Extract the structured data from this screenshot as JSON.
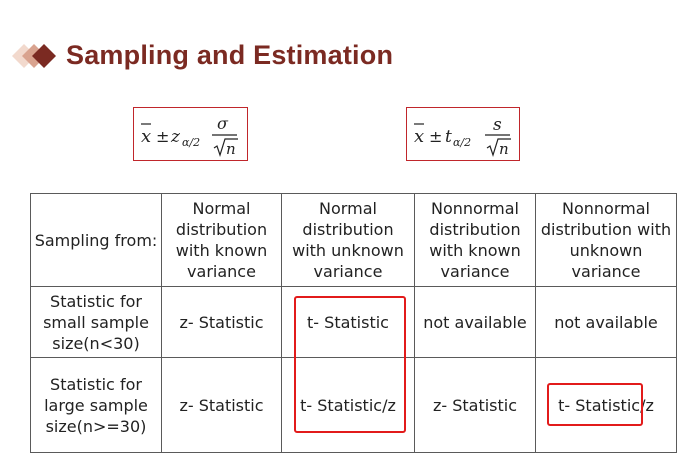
{
  "header": {
    "title": "Sampling and Estimation",
    "colors": {
      "title": "#7b2a22",
      "diamond_dark": "#7b2a22",
      "diamond_mid": "#d9a38f",
      "diamond_light": "#f2d9cd"
    }
  },
  "formulas": {
    "z": {
      "xbar": "x",
      "pm": "±",
      "crit": "z",
      "sub": "α/2",
      "num": "σ",
      "den": "n"
    },
    "t": {
      "xbar": "x",
      "pm": "±",
      "crit": "t",
      "sub": "α/2",
      "num": "s",
      "den": "n"
    }
  },
  "table": {
    "headers": [
      "Sampling from:",
      "Normal distribution with known variance",
      "Normal distribution with unknown variance",
      "Nonnormal distribution with known variance",
      "Nonnormal distribution with unknown variance"
    ],
    "rows": [
      {
        "label": "Statistic for small sample size(n<30)",
        "cells": [
          "z- Statistic",
          "t- Statistic",
          "not available",
          "not available"
        ]
      },
      {
        "label": "Statistic for large sample size(n>=30)",
        "cells": [
          "z- Statistic",
          "t- Statistic/z",
          "z- Statistic",
          "t- Statistic/z"
        ]
      }
    ]
  },
  "highlight_color": "#e21b1b"
}
